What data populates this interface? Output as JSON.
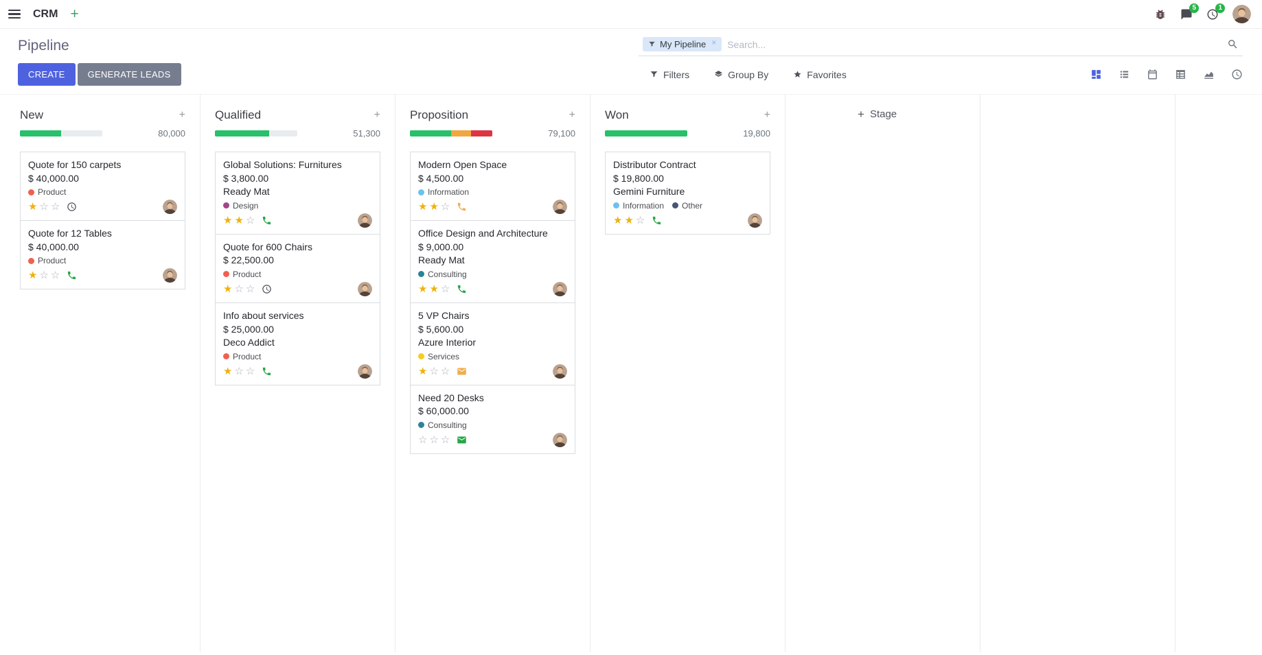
{
  "navbar": {
    "app": "CRM",
    "message_badge": "5",
    "activity_badge": "1"
  },
  "control_panel": {
    "title": "Pipeline",
    "create": "CREATE",
    "generate_leads": "GENERATE LEADS",
    "search": {
      "facet": "My Pipeline",
      "placeholder": "Search..."
    },
    "menus": {
      "filters": "Filters",
      "group_by": "Group By",
      "favorites": "Favorites"
    }
  },
  "board": {
    "add_stage": "Stage",
    "columns": [
      {
        "name": "New",
        "total": "80,000",
        "progress": [
          {
            "color": "#28c06a",
            "pct": 50
          }
        ],
        "cards": [
          {
            "title": "Quote for 150 carpets",
            "amount": "$ 40,000.00",
            "tags": [
              {
                "label": "Product",
                "color": "#f06050"
              }
            ],
            "stars": 1,
            "activity": {
              "icon": "clock",
              "color": "#495057"
            }
          },
          {
            "title": "Quote for 12 Tables",
            "amount": "$ 40,000.00",
            "tags": [
              {
                "label": "Product",
                "color": "#f06050"
              }
            ],
            "stars": 1,
            "activity": {
              "icon": "phone",
              "color": "#28a745"
            }
          }
        ]
      },
      {
        "name": "Qualified",
        "total": "51,300",
        "progress": [
          {
            "color": "#28c06a",
            "pct": 66
          }
        ],
        "cards": [
          {
            "title": "Global Solutions: Furnitures",
            "amount": "$ 3,800.00",
            "partner": "Ready Mat",
            "tags": [
              {
                "label": "Design",
                "color": "#a24689"
              }
            ],
            "stars": 2,
            "activity": {
              "icon": "phone",
              "color": "#28a745"
            }
          },
          {
            "title": "Quote for 600 Chairs",
            "amount": "$ 22,500.00",
            "tags": [
              {
                "label": "Product",
                "color": "#f06050"
              }
            ],
            "stars": 1,
            "activity": {
              "icon": "clock",
              "color": "#495057"
            }
          },
          {
            "title": "Info about services",
            "amount": "$ 25,000.00",
            "partner": "Deco Addict",
            "tags": [
              {
                "label": "Product",
                "color": "#f06050"
              }
            ],
            "stars": 1,
            "activity": {
              "icon": "phone",
              "color": "#28a745"
            }
          }
        ]
      },
      {
        "name": "Proposition",
        "total": "79,100",
        "progress": [
          {
            "color": "#28c06a",
            "pct": 50
          },
          {
            "color": "#f0a742",
            "pct": 24
          },
          {
            "color": "#dc3545",
            "pct": 26
          }
        ],
        "cards": [
          {
            "title": "Modern Open Space",
            "amount": "$ 4,500.00",
            "tags": [
              {
                "label": "Information",
                "color": "#6cc1ed"
              }
            ],
            "stars": 2,
            "activity": {
              "icon": "phone",
              "color": "#f0ad4e"
            }
          },
          {
            "title": "Office Design and Architecture",
            "amount": "$ 9,000.00",
            "partner": "Ready Mat",
            "tags": [
              {
                "label": "Consulting",
                "color": "#2c8397"
              }
            ],
            "stars": 2,
            "activity": {
              "icon": "phone",
              "color": "#28a745"
            }
          },
          {
            "title": "5 VP Chairs",
            "amount": "$ 5,600.00",
            "partner": "Azure Interior",
            "tags": [
              {
                "label": "Services",
                "color": "#f7cd1f"
              }
            ],
            "stars": 1,
            "activity": {
              "icon": "envelope",
              "color": "#f0ad4e"
            }
          },
          {
            "title": "Need 20 Desks",
            "amount": "$ 60,000.00",
            "tags": [
              {
                "label": "Consulting",
                "color": "#2c8397"
              }
            ],
            "stars": 0,
            "activity": {
              "icon": "envelope",
              "color": "#28a745"
            }
          }
        ]
      },
      {
        "name": "Won",
        "total": "19,800",
        "progress": [
          {
            "color": "#28c06a",
            "pct": 100
          }
        ],
        "cards": [
          {
            "title": "Distributor Contract",
            "amount": "$ 19,800.00",
            "partner": "Gemini Furniture",
            "tags": [
              {
                "label": "Information",
                "color": "#6cc1ed"
              },
              {
                "label": "Other",
                "color": "#475577"
              }
            ],
            "stars": 2,
            "activity": {
              "icon": "phone",
              "color": "#28a745"
            }
          }
        ]
      }
    ]
  }
}
